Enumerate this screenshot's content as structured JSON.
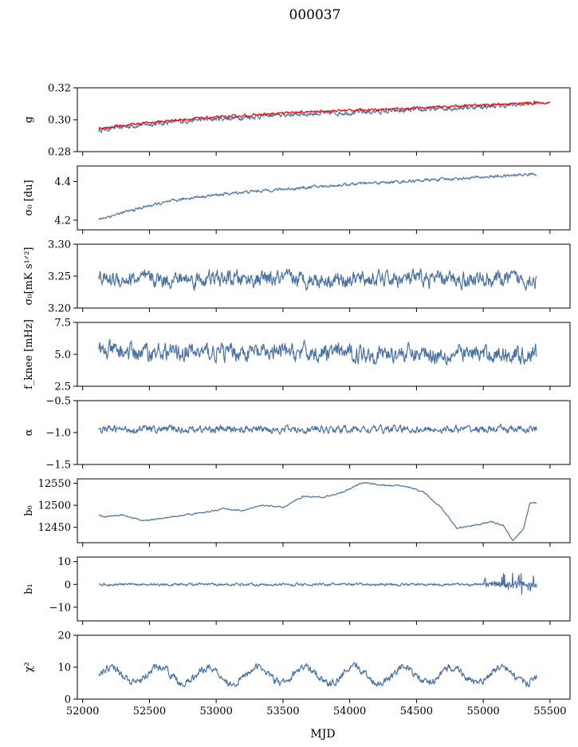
{
  "figure": {
    "title": "000037",
    "xlabel": "MJD"
  },
  "colors": {
    "series": "#4c72a4",
    "fit": "#ff0000"
  },
  "chart_data": [
    {
      "type": "line",
      "id": "g",
      "ylabel": "g",
      "ylim": [
        0.28,
        0.32
      ],
      "yticks": [
        "0.28",
        "0.30",
        "0.32"
      ],
      "xlim": [
        51960,
        55650
      ],
      "series": [
        {
          "color": "#4c72a4",
          "x": [
            52120,
            52400,
            52800,
            53200,
            53600,
            54000,
            54400,
            54800,
            55200,
            55400
          ],
          "y": [
            0.2935,
            0.2965,
            0.2995,
            0.3015,
            0.3035,
            0.3045,
            0.3055,
            0.3075,
            0.309,
            0.3105
          ],
          "noise": 0.0012
        },
        {
          "color": "#ff0000",
          "x": [
            52120,
            52400,
            52800,
            53200,
            53600,
            54000,
            54400,
            54800,
            55200,
            55500
          ],
          "y": [
            0.2945,
            0.2975,
            0.3005,
            0.3025,
            0.3045,
            0.306,
            0.307,
            0.3085,
            0.31,
            0.3108
          ],
          "noise": 0.0006,
          "band": true
        }
      ]
    },
    {
      "type": "line",
      "id": "sigma0_du",
      "ylabel": "σ₀ [du]",
      "ylim": [
        4.15,
        4.48
      ],
      "yticks": [
        "4.2",
        "4.4"
      ],
      "series": [
        {
          "color": "#4c72a4",
          "x": [
            52120,
            52500,
            52800,
            53200,
            53600,
            54000,
            54400,
            54800,
            55200,
            55400
          ],
          "y": [
            4.205,
            4.275,
            4.315,
            4.345,
            4.365,
            4.385,
            4.4,
            4.415,
            4.43,
            4.44
          ],
          "noise": 0.006
        }
      ]
    },
    {
      "type": "line",
      "id": "sigma0_mk",
      "ylabel": "σ₀[mK s¹ᐟ²]",
      "ylim": [
        3.2,
        3.3
      ],
      "yticks": [
        "3.20",
        "3.25",
        "3.30"
      ],
      "series": [
        {
          "color": "#4c72a4",
          "x": [
            52120,
            55400
          ],
          "y": [
            3.245,
            3.245
          ],
          "noise": 0.01
        }
      ]
    },
    {
      "type": "line",
      "id": "fknee",
      "ylabel": "f_knee [mHz]",
      "ylim": [
        2.5,
        7.5
      ],
      "yticks": [
        "2.5",
        "5.0",
        "7.5"
      ],
      "series": [
        {
          "color": "#4c72a4",
          "x": [
            52120,
            55400
          ],
          "y": [
            5.2,
            5.0
          ],
          "noise": 0.55
        }
      ]
    },
    {
      "type": "line",
      "id": "alpha",
      "ylabel": "α",
      "ylim": [
        -1.5,
        -0.5
      ],
      "yticks": [
        "−1.5",
        "−1.0",
        "−0.5"
      ],
      "series": [
        {
          "color": "#4c72a4",
          "x": [
            52120,
            55400
          ],
          "y": [
            -0.95,
            -0.95
          ],
          "noise": 0.045
        }
      ]
    },
    {
      "type": "line",
      "id": "b0",
      "ylabel": "b₀",
      "ylim": [
        12415,
        12560
      ],
      "yticks": [
        "12450",
        "12500",
        "12550"
      ],
      "series": [
        {
          "color": "#4c72a4",
          "x": [
            52120,
            52150,
            52300,
            52450,
            52600,
            52750,
            52900,
            53050,
            53200,
            53350,
            53500,
            53650,
            53800,
            53950,
            54100,
            54250,
            54400,
            54550,
            54700,
            54800,
            54950,
            55050,
            55150,
            55220,
            55300,
            55350,
            55400
          ],
          "y": [
            12478,
            12474,
            12478,
            12465,
            12470,
            12478,
            12483,
            12492,
            12488,
            12500,
            12495,
            12520,
            12518,
            12530,
            12552,
            12545,
            12545,
            12530,
            12490,
            12448,
            12455,
            12463,
            12455,
            12420,
            12445,
            12505,
            12505
          ],
          "noise": 1.2
        }
      ]
    },
    {
      "type": "line",
      "id": "b1",
      "ylabel": "b₁",
      "ylim": [
        -16,
        12
      ],
      "yticks": [
        "−10",
        "0",
        "10"
      ],
      "series": [
        {
          "color": "#4c72a4",
          "x": [
            52120,
            55400
          ],
          "y": [
            0,
            0
          ],
          "noise": 0.45
        }
      ]
    },
    {
      "type": "line",
      "id": "chi2",
      "ylabel": "χ²",
      "ylim": [
        0,
        20
      ],
      "yticks": [
        "0",
        "10",
        "20"
      ],
      "xticks": [
        "52000",
        "52500",
        "53000",
        "53500",
        "54000",
        "54500",
        "55000",
        "55500"
      ],
      "series": [
        {
          "color": "#4c72a4",
          "x": [
            52120,
            55400
          ],
          "y": [
            7.5,
            7.5
          ],
          "noise": 0.9,
          "periodic": 2.5
        }
      ]
    }
  ]
}
